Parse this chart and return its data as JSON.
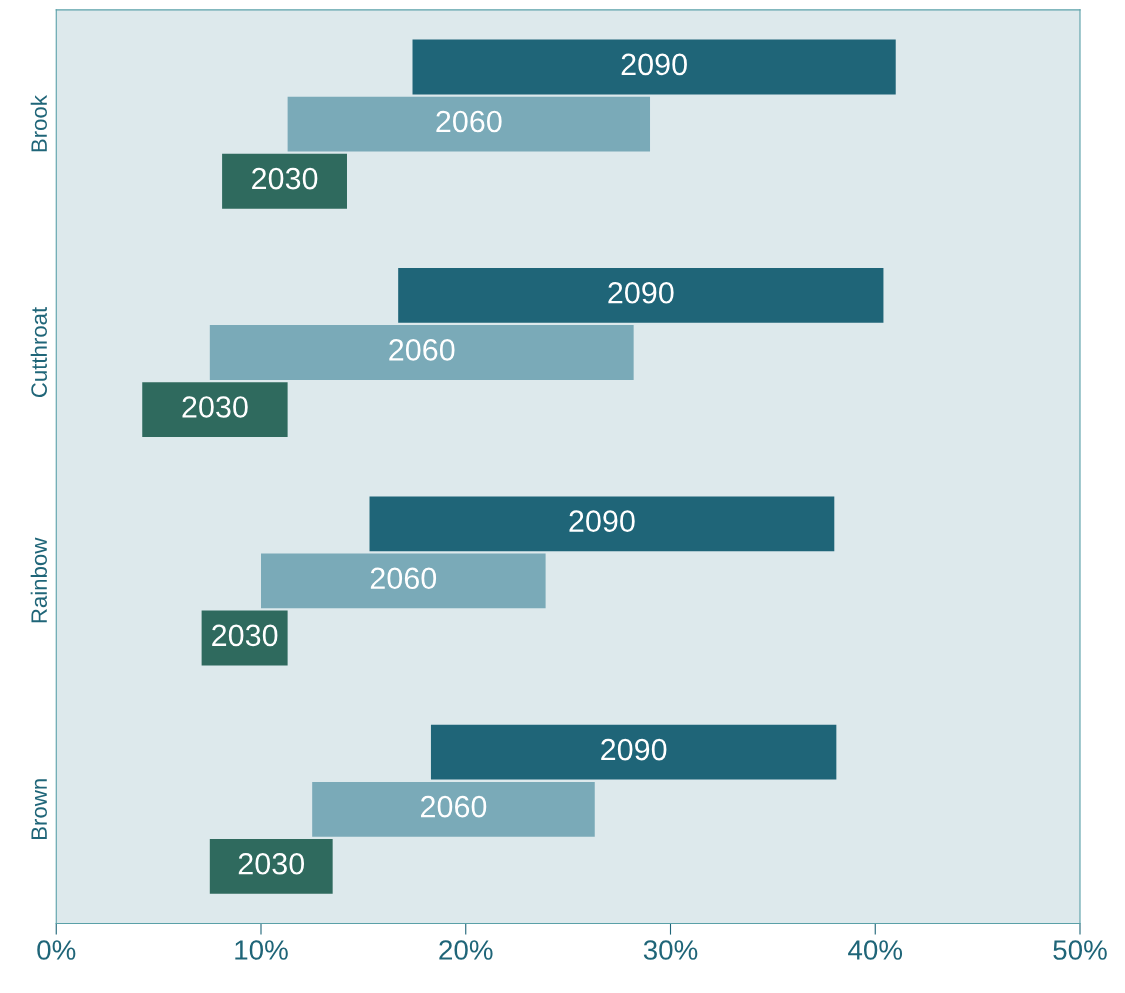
{
  "chart_data": {
    "type": "bar",
    "orientation": "horizontal",
    "categories": [
      "Brook",
      "Cutthroat",
      "Rainbow",
      "Brown"
    ],
    "series": [
      {
        "name": "2030",
        "color": "#2f6a5e",
        "base": [
          8.1,
          4.2,
          7.1,
          7.5
        ],
        "values": [
          6.1,
          7.1,
          4.2,
          6.0
        ]
      },
      {
        "name": "2060",
        "color": "#7aaab8",
        "base": [
          11.3,
          7.5,
          10.0,
          12.5
        ],
        "values": [
          17.7,
          20.7,
          13.9,
          13.8
        ]
      },
      {
        "name": "2090",
        "color": "#1f6578",
        "base": [
          17.4,
          16.7,
          15.3,
          18.3
        ],
        "values": [
          23.6,
          23.7,
          22.7,
          19.8
        ]
      }
    ],
    "xlim": [
      0,
      50
    ],
    "xticks": [
      {
        "value": 0,
        "label": "0%"
      },
      {
        "value": 10,
        "label": "10%"
      },
      {
        "value": 20,
        "label": "20%"
      },
      {
        "value": 30,
        "label": "30%"
      },
      {
        "value": 40,
        "label": "40%"
      },
      {
        "value": 50,
        "label": "50%"
      }
    ],
    "grid": false,
    "legend": false
  }
}
